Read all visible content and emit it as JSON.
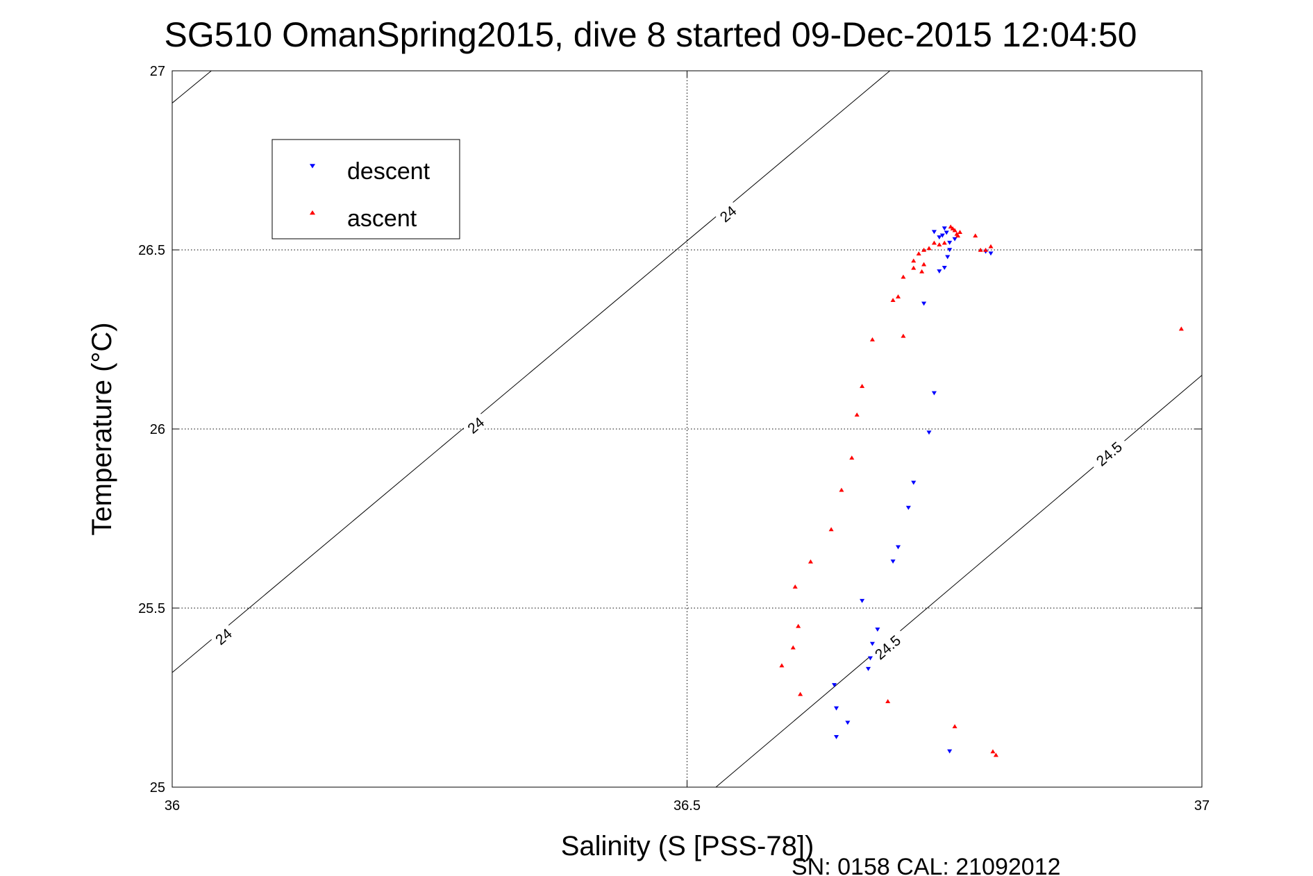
{
  "title": "SG510 OmanSpring2015, dive 8 started 09-Dec-2015 12:04:50",
  "footer": "SN: 0158  CAL: 21092012",
  "chart_data": {
    "type": "scatter",
    "title": "SG510 OmanSpring2015, dive 8 started 09-Dec-2015 12:04:50",
    "xlabel": "Salinity (S [PSS-78])",
    "ylabel": "Temperature (°C)",
    "xlim": [
      36,
      37
    ],
    "ylim": [
      25,
      27
    ],
    "xticks": [
      36,
      36.5,
      37
    ],
    "xtick_labels": [
      "36",
      "36.5",
      "37"
    ],
    "yticks": [
      25,
      25.5,
      26,
      26.5,
      27
    ],
    "ytick_labels": [
      "25",
      "25.5",
      "26",
      "26.5",
      "27"
    ],
    "grid": true,
    "legend_position": "top-left",
    "density_contours": [
      {
        "level": 24,
        "label": "24",
        "lines": [
          {
            "x": [
              36,
              36.038
            ],
            "y": [
              26.91,
              27.0
            ]
          },
          {
            "x": [
              36,
              36.697
            ],
            "y": [
              25.32,
              27.0
            ]
          }
        ],
        "label_positions": [
          [
            36.05,
            25.42
          ],
          [
            36.295,
            26.01
          ],
          [
            36.54,
            26.6
          ]
        ]
      },
      {
        "level": 24.5,
        "label": "24.5",
        "lines": [
          {
            "x": [
              36.528,
              37
            ],
            "y": [
              25.0,
              26.15
            ]
          }
        ],
        "label_positions": [
          [
            36.695,
            25.39
          ],
          [
            36.91,
            25.93
          ]
        ]
      }
    ],
    "series": [
      {
        "name": "descent",
        "color": "#0000ff",
        "marker": "triangle-down",
        "points": [
          [
            36.75,
            26.56
          ],
          [
            36.752,
            26.548
          ],
          [
            36.748,
            26.54
          ],
          [
            36.755,
            26.52
          ],
          [
            36.76,
            26.53
          ],
          [
            36.755,
            26.5
          ],
          [
            36.753,
            26.48
          ],
          [
            36.75,
            26.45
          ],
          [
            36.745,
            26.44
          ],
          [
            36.79,
            26.495
          ],
          [
            36.795,
            26.49
          ],
          [
            36.74,
            26.55
          ],
          [
            36.745,
            26.535
          ],
          [
            36.73,
            26.35
          ],
          [
            36.74,
            26.1
          ],
          [
            36.735,
            25.99
          ],
          [
            36.72,
            25.85
          ],
          [
            36.715,
            25.78
          ],
          [
            36.705,
            25.67
          ],
          [
            36.7,
            25.63
          ],
          [
            36.67,
            25.52
          ],
          [
            36.685,
            25.44
          ],
          [
            36.68,
            25.4
          ],
          [
            36.678,
            25.36
          ],
          [
            36.676,
            25.33
          ],
          [
            36.643,
            25.285
          ],
          [
            36.645,
            25.22
          ],
          [
            36.656,
            25.18
          ],
          [
            36.645,
            25.14
          ],
          [
            36.755,
            25.1
          ]
        ]
      },
      {
        "name": "ascent",
        "color": "#ff0000",
        "marker": "triangle-up",
        "points": [
          [
            36.76,
            26.555
          ],
          [
            36.762,
            26.545
          ],
          [
            36.758,
            26.56
          ],
          [
            36.765,
            26.55
          ],
          [
            36.756,
            26.565
          ],
          [
            36.763,
            26.54
          ],
          [
            36.75,
            26.52
          ],
          [
            36.745,
            26.515
          ],
          [
            36.74,
            26.52
          ],
          [
            36.735,
            26.505
          ],
          [
            36.78,
            26.54
          ],
          [
            36.785,
            26.5
          ],
          [
            36.79,
            26.5
          ],
          [
            36.795,
            26.51
          ],
          [
            36.73,
            26.5
          ],
          [
            36.725,
            26.49
          ],
          [
            36.72,
            26.47
          ],
          [
            36.73,
            26.46
          ],
          [
            36.728,
            26.44
          ],
          [
            36.72,
            26.45
          ],
          [
            36.71,
            26.425
          ],
          [
            36.7,
            26.36
          ],
          [
            36.705,
            26.37
          ],
          [
            36.71,
            26.26
          ],
          [
            36.68,
            26.25
          ],
          [
            36.67,
            26.12
          ],
          [
            36.665,
            26.04
          ],
          [
            36.66,
            25.92
          ],
          [
            36.65,
            25.83
          ],
          [
            36.64,
            25.72
          ],
          [
            36.62,
            25.63
          ],
          [
            36.605,
            25.56
          ],
          [
            36.608,
            25.45
          ],
          [
            36.603,
            25.39
          ],
          [
            36.592,
            25.34
          ],
          [
            36.61,
            25.26
          ],
          [
            36.695,
            25.24
          ],
          [
            36.76,
            25.17
          ],
          [
            36.797,
            25.1
          ],
          [
            36.8,
            25.09
          ],
          [
            36.98,
            26.28
          ]
        ]
      }
    ]
  }
}
